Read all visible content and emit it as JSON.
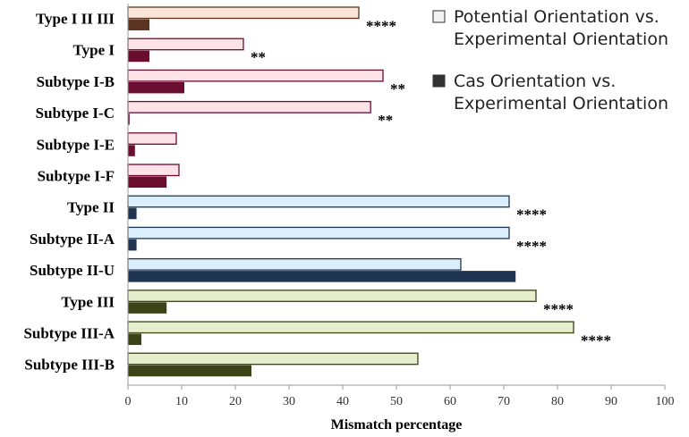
{
  "chart_data": {
    "type": "bar",
    "orientation": "horizontal",
    "title": "",
    "xlabel": "Mismatch percentage",
    "ylabel": "",
    "xlim": [
      0,
      100
    ],
    "xticks": [
      0,
      10,
      20,
      30,
      40,
      50,
      60,
      70,
      80,
      90,
      100
    ],
    "xtick_labels": [
      "0",
      "10",
      "20",
      "30",
      "40",
      "50",
      "60",
      "70",
      "80",
      "90",
      "100"
    ],
    "grid": false,
    "legend_position": "top-right",
    "categories": [
      "Type I II III",
      "Type I",
      "Subtype I-B",
      "Subtype I-C",
      "Subtype I-E",
      "Subtype I-F",
      "Type II",
      "Subtype II-A",
      "Subtype II-U",
      "Type III",
      "Subtype III-A",
      "Subtype III-B"
    ],
    "series": [
      {
        "name": "Potential Orientation vs. Experimental Orientation",
        "legend_lines": [
          "Potential Orientation vs.",
          "Experimental Orientation"
        ],
        "values": [
          43,
          21.5,
          47.5,
          45.2,
          9,
          9.5,
          71,
          71,
          62,
          76,
          83,
          54
        ],
        "fill": [
          "#fbe5d8",
          "#fde3e8",
          "#fde3e8",
          "#fde3e8",
          "#fde3e8",
          "#fde3e8",
          "#dbeefc",
          "#dbeefc",
          "#dbeefc",
          "#e6eecd",
          "#e6eecd",
          "#e6eecd"
        ],
        "stroke": [
          "#5c3520",
          "#6b0d2e",
          "#6b0d2e",
          "#6b0d2e",
          "#6b0d2e",
          "#6b0d2e",
          "#1f3552",
          "#1f3552",
          "#1f3552",
          "#3b4215",
          "#3b4215",
          "#3b4215"
        ]
      },
      {
        "name": "Cas Orientation vs. Experimental Orientation",
        "legend_lines": [
          "Cas Orientation vs.",
          "Experimental Orientation"
        ],
        "values": [
          4,
          4,
          10.5,
          0.3,
          1.3,
          7.2,
          1.6,
          1.6,
          72.2,
          7.2,
          2.5,
          23
        ],
        "fill": [
          "#5c3520",
          "#6b0d2e",
          "#6b0d2e",
          "#6b0d2e",
          "#6b0d2e",
          "#6b0d2e",
          "#1f3552",
          "#1f3552",
          "#1f3552",
          "#3b4215",
          "#3b4215",
          "#3b4215"
        ]
      }
    ],
    "significance": [
      "****",
      "**",
      "**",
      "**",
      "",
      "",
      "****",
      "****",
      "",
      "****",
      "****",
      ""
    ],
    "legend_swatch_fill": [
      "#f2f2f2",
      "#333333"
    ]
  }
}
